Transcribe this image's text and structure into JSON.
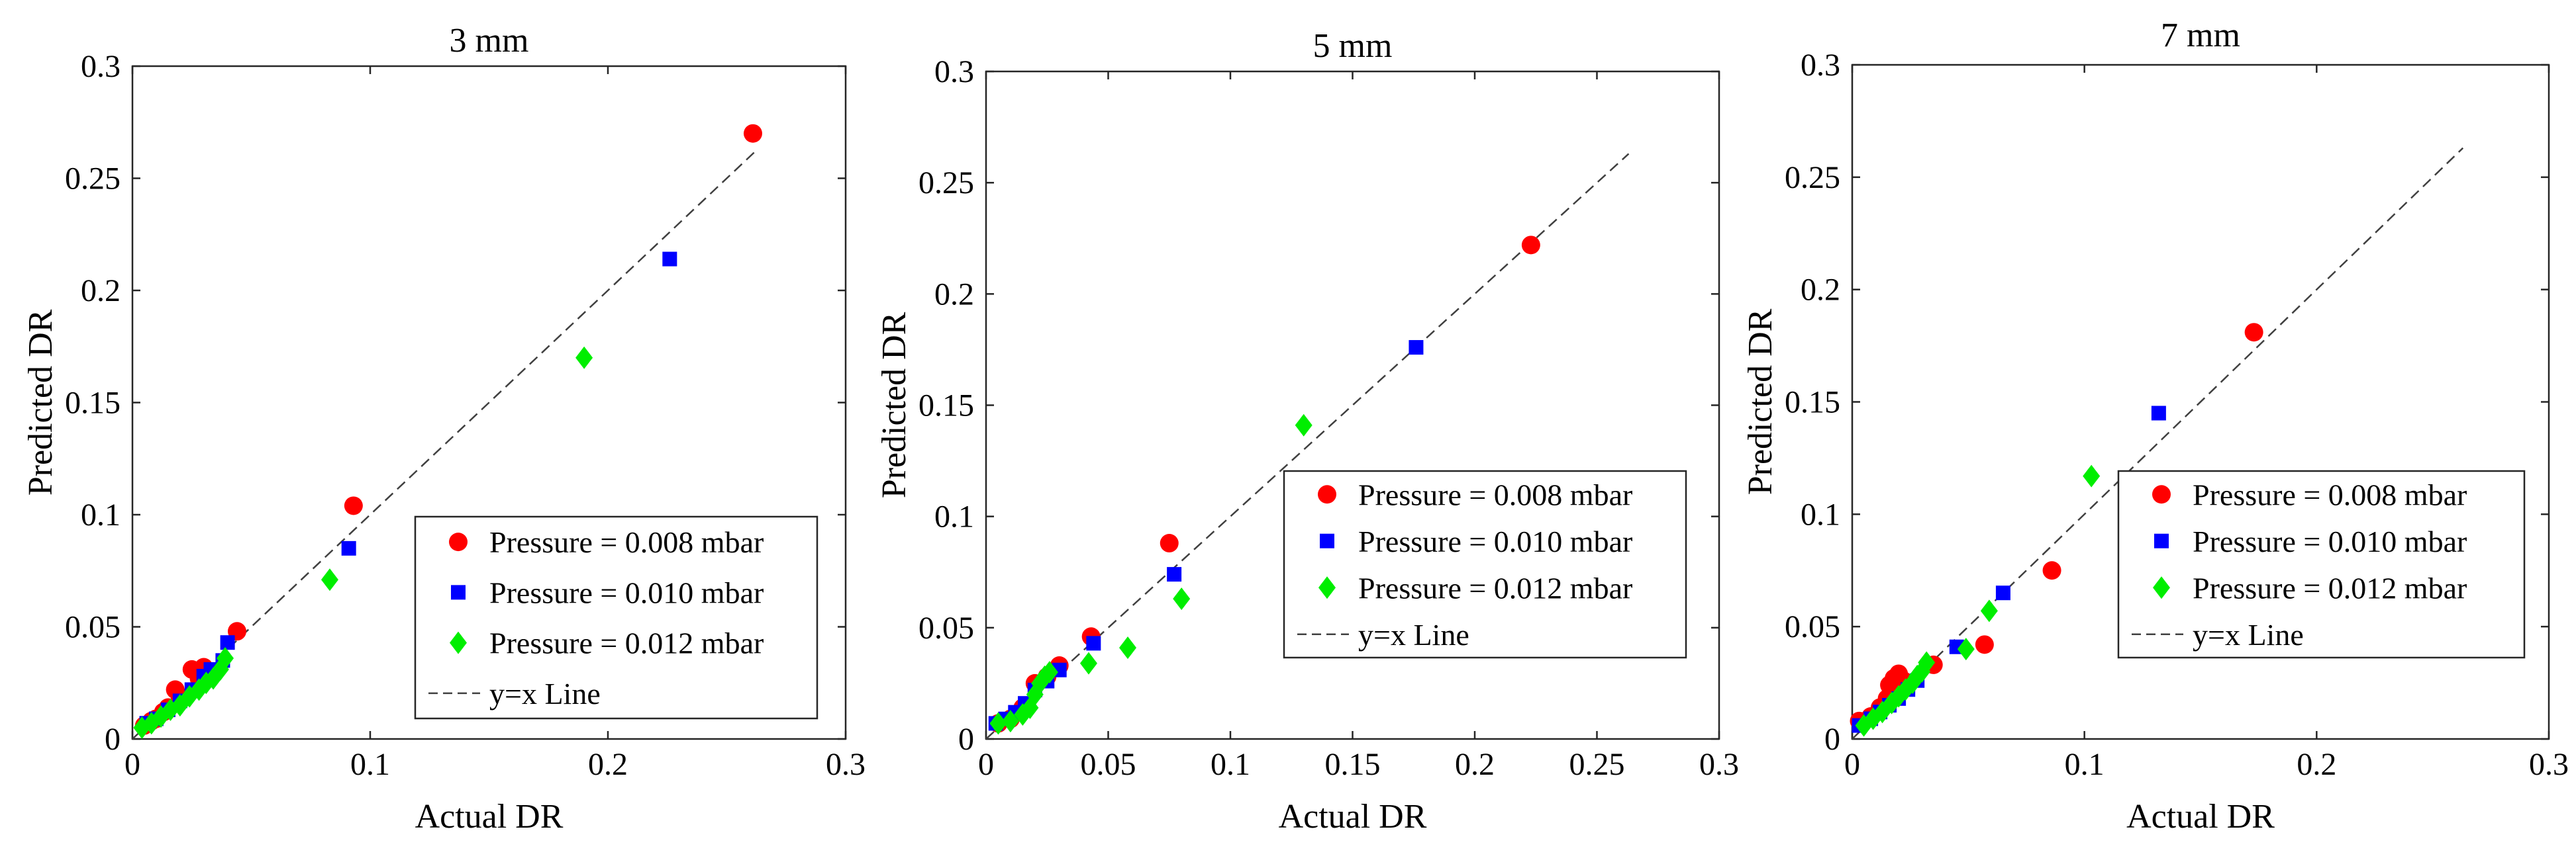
{
  "chart_data": [
    {
      "type": "scatter",
      "title": "3 mm",
      "xlabel": "Actual DR",
      "ylabel": "Predicted DR",
      "xlim": [
        0,
        0.3
      ],
      "ylim": [
        0,
        0.3
      ],
      "xticks": [
        0,
        0.1,
        0.2,
        0.3
      ],
      "xtick_labels": [
        "0",
        "0.1",
        "0.2",
        "0.3"
      ],
      "yticks": [
        0,
        0.05,
        0.1,
        0.15,
        0.2,
        0.25,
        0.3
      ],
      "ytick_labels": [
        "0",
        "0.05",
        "0.1",
        "0.15",
        "0.2",
        "0.25",
        "0.3"
      ],
      "legend_position": "bottom-right",
      "series": [
        {
          "name": "Pressure = 0.008 mbar",
          "marker": "circle",
          "color": "#ff0000",
          "x": [
            0.005,
            0.008,
            0.01,
            0.013,
            0.015,
            0.018,
            0.02,
            0.025,
            0.028,
            0.03,
            0.044,
            0.093,
            0.261
          ],
          "y": [
            0.006,
            0.008,
            0.009,
            0.012,
            0.014,
            0.022,
            0.018,
            0.031,
            0.027,
            0.032,
            0.048,
            0.104,
            0.27
          ]
        },
        {
          "name": "Pressure = 0.010 mbar",
          "marker": "square",
          "color": "#0000ff",
          "x": [
            0.006,
            0.01,
            0.015,
            0.02,
            0.025,
            0.03,
            0.033,
            0.038,
            0.04,
            0.091,
            0.226
          ],
          "y": [
            0.007,
            0.009,
            0.013,
            0.017,
            0.022,
            0.028,
            0.031,
            0.035,
            0.043,
            0.085,
            0.214
          ]
        },
        {
          "name": "Pressure = 0.012 mbar",
          "marker": "diamond",
          "color": "#00ee00",
          "x": [
            0.004,
            0.008,
            0.012,
            0.016,
            0.02,
            0.024,
            0.028,
            0.031,
            0.034,
            0.037,
            0.039,
            0.083,
            0.19
          ],
          "y": [
            0.005,
            0.007,
            0.01,
            0.013,
            0.015,
            0.019,
            0.022,
            0.025,
            0.027,
            0.031,
            0.036,
            0.071,
            0.17
          ]
        }
      ],
      "reference_line": {
        "name": "y=x Line",
        "from": [
          0,
          0
        ],
        "to": [
          0.263,
          0.263
        ]
      }
    },
    {
      "type": "scatter",
      "title": "5 mm",
      "xlabel": "Actual DR",
      "ylabel": "Predicted DR",
      "xlim": [
        0,
        0.3
      ],
      "ylim": [
        0,
        0.3
      ],
      "xticks": [
        0,
        0.05,
        0.1,
        0.15,
        0.2,
        0.25,
        0.3
      ],
      "xtick_labels": [
        "0",
        "0.05",
        "0.1",
        "0.15",
        "0.2",
        "0.25",
        "0.3"
      ],
      "yticks": [
        0,
        0.05,
        0.1,
        0.15,
        0.2,
        0.25,
        0.3
      ],
      "ytick_labels": [
        "0",
        "0.05",
        "0.1",
        "0.15",
        "0.2",
        "0.25",
        "0.3"
      ],
      "legend_position": "center-right",
      "series": [
        {
          "name": "Pressure = 0.008 mbar",
          "marker": "circle",
          "color": "#ff0000",
          "x": [
            0.005,
            0.01,
            0.015,
            0.02,
            0.025,
            0.03,
            0.043,
            0.075,
            0.223
          ],
          "y": [
            0.007,
            0.009,
            0.014,
            0.025,
            0.028,
            0.033,
            0.046,
            0.088,
            0.222
          ]
        },
        {
          "name": "Pressure = 0.010 mbar",
          "marker": "square",
          "color": "#0000ff",
          "x": [
            0.004,
            0.008,
            0.012,
            0.016,
            0.02,
            0.025,
            0.03,
            0.044,
            0.077,
            0.176
          ],
          "y": [
            0.007,
            0.009,
            0.012,
            0.016,
            0.022,
            0.026,
            0.031,
            0.043,
            0.074,
            0.176
          ]
        },
        {
          "name": "Pressure = 0.012 mbar",
          "marker": "diamond",
          "color": "#00ee00",
          "x": [
            0.005,
            0.01,
            0.015,
            0.018,
            0.02,
            0.022,
            0.024,
            0.026,
            0.042,
            0.058,
            0.08,
            0.13
          ],
          "y": [
            0.007,
            0.008,
            0.011,
            0.014,
            0.02,
            0.025,
            0.028,
            0.03,
            0.034,
            0.041,
            0.063,
            0.141
          ]
        }
      ],
      "reference_line": {
        "name": "y=x Line",
        "from": [
          0,
          0
        ],
        "to": [
          0.263,
          0.263
        ]
      }
    },
    {
      "type": "scatter",
      "title": "7 mm",
      "xlabel": "Actual DR",
      "ylabel": "Predicted DR",
      "xlim": [
        0,
        0.3
      ],
      "ylim": [
        0,
        0.3
      ],
      "xticks": [
        0,
        0.1,
        0.2,
        0.3
      ],
      "xtick_labels": [
        "0",
        "0.1",
        "0.2",
        "0.3"
      ],
      "yticks": [
        0,
        0.05,
        0.1,
        0.15,
        0.2,
        0.25,
        0.3
      ],
      "ytick_labels": [
        "0",
        "0.05",
        "0.1",
        "0.15",
        "0.2",
        "0.25",
        "0.3"
      ],
      "legend_position": "center-right",
      "series": [
        {
          "name": "Pressure = 0.008 mbar",
          "marker": "circle",
          "color": "#ff0000",
          "x": [
            0.003,
            0.008,
            0.012,
            0.015,
            0.016,
            0.018,
            0.02,
            0.022,
            0.035,
            0.057,
            0.086,
            0.173
          ],
          "y": [
            0.008,
            0.01,
            0.014,
            0.018,
            0.024,
            0.027,
            0.029,
            0.026,
            0.033,
            0.042,
            0.075,
            0.181
          ]
        },
        {
          "name": "Pressure = 0.010 mbar",
          "marker": "square",
          "color": "#0000ff",
          "x": [
            0.003,
            0.008,
            0.012,
            0.016,
            0.02,
            0.024,
            0.028,
            0.045,
            0.065,
            0.132
          ],
          "y": [
            0.006,
            0.009,
            0.012,
            0.015,
            0.018,
            0.022,
            0.026,
            0.041,
            0.065,
            0.145
          ]
        },
        {
          "name": "Pressure = 0.012 mbar",
          "marker": "diamond",
          "color": "#00ee00",
          "x": [
            0.005,
            0.009,
            0.013,
            0.017,
            0.02,
            0.023,
            0.026,
            0.028,
            0.03,
            0.032,
            0.049,
            0.059,
            0.103
          ],
          "y": [
            0.006,
            0.009,
            0.012,
            0.016,
            0.019,
            0.022,
            0.025,
            0.028,
            0.03,
            0.034,
            0.04,
            0.057,
            0.117
          ]
        }
      ],
      "reference_line": {
        "name": "y=x Line",
        "from": [
          0,
          0
        ],
        "to": [
          0.263,
          0.263
        ]
      }
    }
  ]
}
